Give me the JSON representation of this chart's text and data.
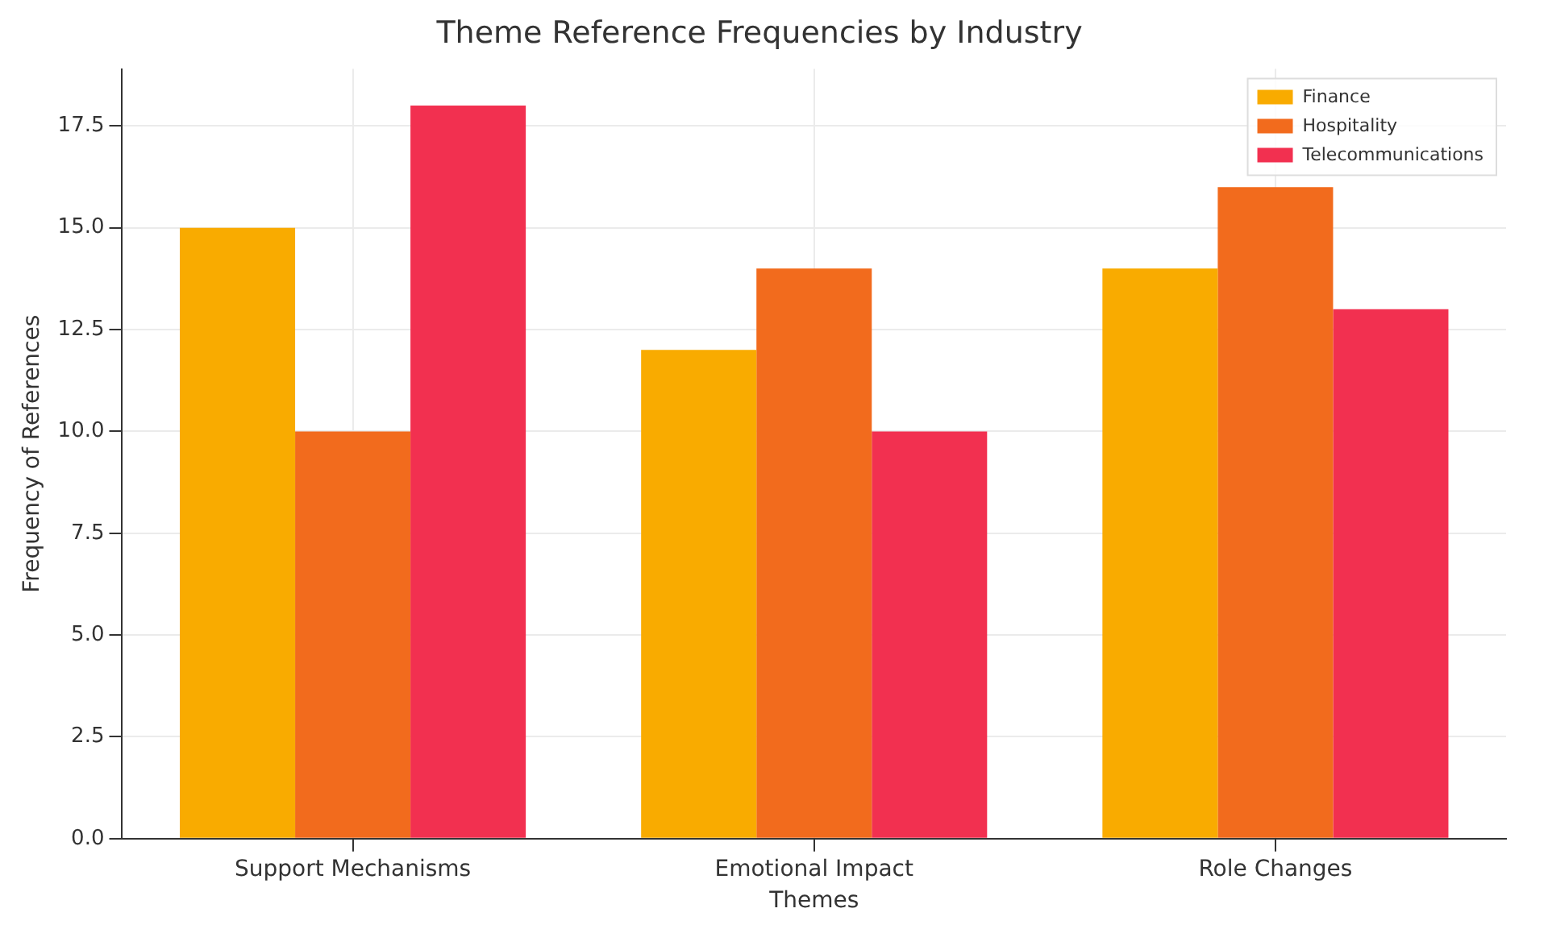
{
  "chart_data": {
    "type": "bar",
    "title": "Theme Reference Frequencies by Industry",
    "xlabel": "Themes",
    "ylabel": "Frequency of References",
    "categories": [
      "Support Mechanisms",
      "Emotional Impact",
      "Role Changes"
    ],
    "series": [
      {
        "name": "Finance",
        "color": "#f9ab00",
        "values": [
          15,
          12,
          14
        ]
      },
      {
        "name": "Hospitality",
        "color": "#f26b1d",
        "values": [
          10,
          14,
          16
        ]
      },
      {
        "name": "Telecommunications",
        "color": "#f23050",
        "values": [
          18,
          10,
          13
        ]
      }
    ],
    "ylim": [
      0,
      18.9
    ],
    "yticks": [
      {
        "value": 0,
        "label": "0.0"
      },
      {
        "value": 2.5,
        "label": "2.5"
      },
      {
        "value": 5,
        "label": "5.0"
      },
      {
        "value": 7.5,
        "label": "7.5"
      },
      {
        "value": 10,
        "label": "10.0"
      },
      {
        "value": 12.5,
        "label": "12.5"
      },
      {
        "value": 15,
        "label": "15.0"
      },
      {
        "value": 17.5,
        "label": "17.5"
      }
    ],
    "grid": true,
    "legend": "top right"
  }
}
